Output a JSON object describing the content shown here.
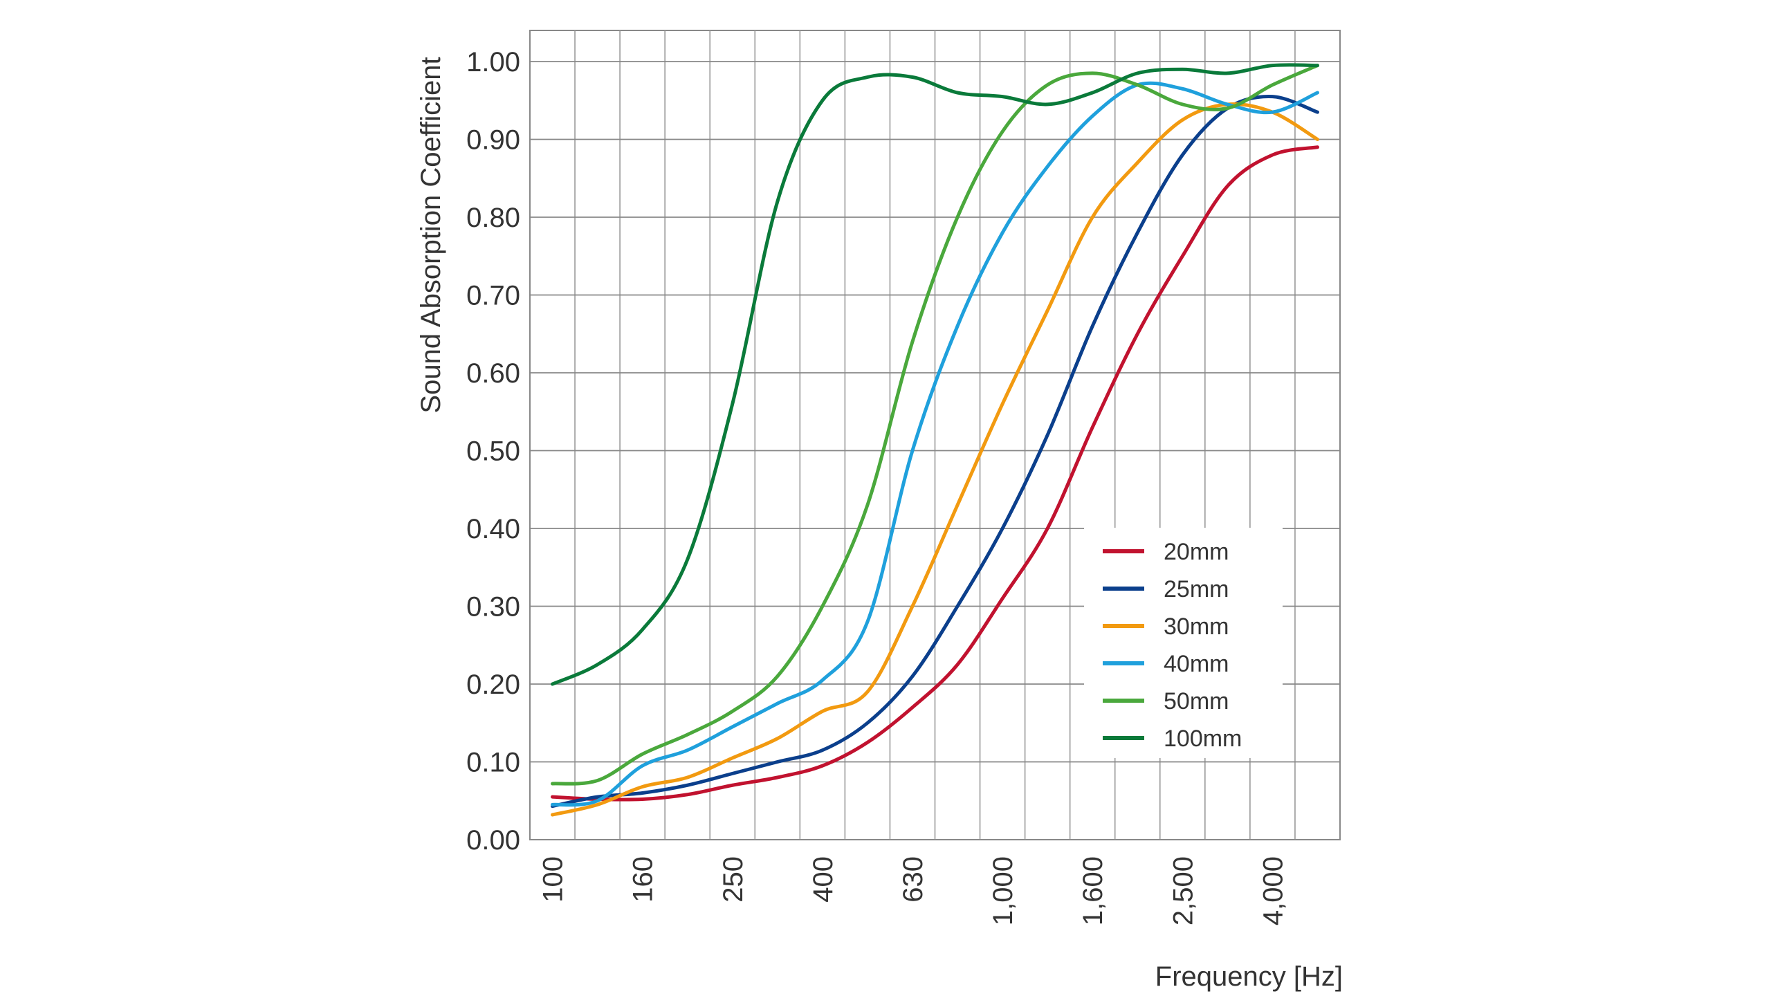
{
  "chart_data": {
    "type": "line",
    "title": "",
    "xlabel": "Frequency [Hz]",
    "ylabel": "Sound Absorption Coefficient",
    "x_scale": "third-octave bands (log)",
    "categories": [
      100,
      125,
      160,
      200,
      250,
      315,
      400,
      500,
      630,
      800,
      1000,
      1250,
      1600,
      2000,
      2500,
      3150,
      4000,
      5000
    ],
    "x_tick_labels": [
      "100",
      "160",
      "250",
      "400",
      "630",
      "1,000",
      "1,600",
      "2,500",
      "4,000"
    ],
    "x_tick_values": [
      100,
      160,
      250,
      400,
      630,
      1000,
      1600,
      2500,
      4000
    ],
    "y_tick_labels": [
      "0.00",
      "0.10",
      "0.20",
      "0.30",
      "0.40",
      "0.50",
      "0.60",
      "0.70",
      "0.80",
      "0.90",
      "1.00"
    ],
    "ylim": [
      0,
      1.04
    ],
    "grid": true,
    "legend_position": "bottom-right",
    "series": [
      {
        "name": "20mm",
        "color": "#c1122f",
        "values": [
          0.055,
          0.052,
          0.052,
          0.058,
          0.07,
          0.08,
          0.095,
          0.125,
          0.17,
          0.225,
          0.31,
          0.4,
          0.53,
          0.65,
          0.75,
          0.84,
          0.88,
          0.89
        ]
      },
      {
        "name": "25mm",
        "color": "#0b3f8c",
        "values": [
          0.043,
          0.055,
          0.06,
          0.07,
          0.085,
          0.1,
          0.115,
          0.15,
          0.21,
          0.3,
          0.4,
          0.52,
          0.66,
          0.78,
          0.88,
          0.94,
          0.955,
          0.935
        ]
      },
      {
        "name": "30mm",
        "color": "#f29a10",
        "values": [
          0.032,
          0.045,
          0.068,
          0.08,
          0.105,
          0.13,
          0.165,
          0.19,
          0.3,
          0.43,
          0.56,
          0.68,
          0.8,
          0.87,
          0.925,
          0.945,
          0.935,
          0.9
        ]
      },
      {
        "name": "40mm",
        "color": "#1fa0dc",
        "values": [
          0.045,
          0.05,
          0.095,
          0.115,
          0.145,
          0.175,
          0.205,
          0.28,
          0.5,
          0.66,
          0.78,
          0.865,
          0.93,
          0.97,
          0.965,
          0.945,
          0.935,
          0.96
        ]
      },
      {
        "name": "50mm",
        "color": "#4aa83c",
        "values": [
          0.072,
          0.076,
          0.11,
          0.135,
          0.165,
          0.21,
          0.3,
          0.43,
          0.64,
          0.8,
          0.91,
          0.97,
          0.985,
          0.97,
          0.945,
          0.94,
          0.97,
          0.995
        ]
      },
      {
        "name": "100mm",
        "color": "#0a7a3a",
        "values": [
          0.2,
          0.225,
          0.27,
          0.36,
          0.56,
          0.82,
          0.95,
          0.98,
          0.98,
          0.96,
          0.955,
          0.945,
          0.96,
          0.985,
          0.99,
          0.985,
          0.995,
          0.995
        ]
      }
    ]
  }
}
